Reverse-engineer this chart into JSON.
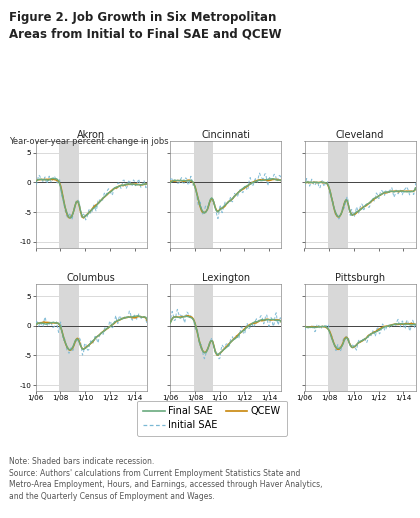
{
  "title": "Figure 2. Job Growth in Six Metropolitan\nAreas from Initial to Final SAE and QCEW",
  "ylabel": "Year-over-year percent change in jobs",
  "cities": [
    "Akron",
    "Cincinnati",
    "Cleveland",
    "Columbus",
    "Lexington",
    "Pittsburgh"
  ],
  "ylim": [
    -11,
    7
  ],
  "yticks": [
    -10,
    -5,
    0,
    5
  ],
  "xlim": [
    2006.0,
    2015.0
  ],
  "xtick_vals": [
    2006.0,
    2008.0,
    2010.0,
    2012.0,
    2014.0
  ],
  "xtick_labels": [
    "1/06",
    "1/08",
    "1/10",
    "1/12",
    "1/14"
  ],
  "recession_shading": [
    2007.917,
    2009.5
  ],
  "color_final_sae": "#6aaa7e",
  "color_initial_sae": "#7ab8d4",
  "color_qcew": "#c8860a",
  "recession_color": "#d8d8d8",
  "note_text": "Note: Shaded bars indicate recession.\nSource: Authors' calculations from Current Employment Statistics State and\nMetro-Area Employment, Hours, and Earnings, accessed through Haver Analytics,\nand the Quarterly Census of Employment and Wages.",
  "legend_items": [
    "Final SAE",
    "Initial SAE",
    "QCEW"
  ]
}
